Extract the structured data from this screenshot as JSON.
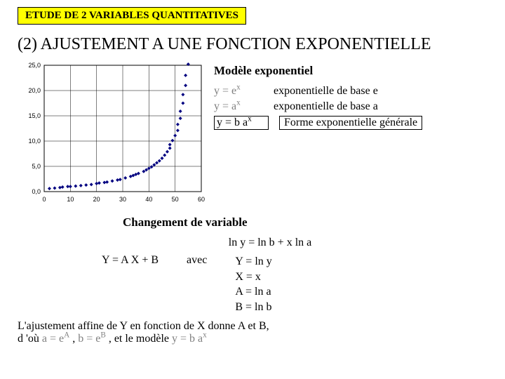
{
  "banner": "ETUDE DE 2 VARIABLES QUANTITATIVES",
  "section_number": "(2)",
  "section_title": "AJUSTEMENT A UNE FONCTION EXPONENTIELLE",
  "chart": {
    "type": "scatter",
    "background_color": "#ffffff",
    "axis_color": "#000000",
    "grid_color": "#000000",
    "marker_color": "#000080",
    "marker_size": 5,
    "xlim": [
      0,
      60
    ],
    "xtick_step": 10,
    "ylim": [
      0,
      25
    ],
    "ytick_step": 5,
    "xticks": [
      "0",
      "10",
      "20",
      "30",
      "40",
      "50",
      "60"
    ],
    "yticks": [
      "0,0",
      "5,0",
      "10,0",
      "15,0",
      "20,0",
      "25,0"
    ],
    "tick_fontsize": 9,
    "points": [
      [
        2,
        0.6
      ],
      [
        4,
        0.7
      ],
      [
        6,
        0.8
      ],
      [
        7,
        0.9
      ],
      [
        9,
        1.0
      ],
      [
        10,
        1.0
      ],
      [
        12,
        1.1
      ],
      [
        14,
        1.2
      ],
      [
        16,
        1.3
      ],
      [
        18,
        1.4
      ],
      [
        20,
        1.6
      ],
      [
        21,
        1.7
      ],
      [
        23,
        1.8
      ],
      [
        24,
        1.9
      ],
      [
        26,
        2.1
      ],
      [
        28,
        2.3
      ],
      [
        29,
        2.4
      ],
      [
        31,
        2.7
      ],
      [
        33,
        3.0
      ],
      [
        34,
        3.2
      ],
      [
        35,
        3.4
      ],
      [
        36,
        3.6
      ],
      [
        38,
        4.0
      ],
      [
        39,
        4.3
      ],
      [
        40,
        4.6
      ],
      [
        41,
        4.9
      ],
      [
        42,
        5.3
      ],
      [
        43,
        5.7
      ],
      [
        44,
        6.1
      ],
      [
        45,
        6.6
      ],
      [
        46,
        7.2
      ],
      [
        47,
        7.9
      ],
      [
        48,
        8.6
      ],
      [
        48,
        9.3
      ],
      [
        49,
        10.1
      ],
      [
        50,
        11.1
      ],
      [
        51,
        12.1
      ],
      [
        51,
        13.3
      ],
      [
        52,
        14.5
      ],
      [
        52,
        15.9
      ],
      [
        53,
        17.5
      ],
      [
        53,
        19.2
      ],
      [
        54,
        21.0
      ],
      [
        54,
        23.0
      ],
      [
        55,
        25.2
      ]
    ]
  },
  "model": {
    "heading": "Modèle exponentiel",
    "rows": [
      {
        "eq_pre": "y = e",
        "eq_sup": "x",
        "desc": "exponentielle de base e",
        "boxed": false
      },
      {
        "eq_pre": "y = a",
        "eq_sup": "x",
        "desc": "exponentielle de base a",
        "boxed": false
      },
      {
        "eq_pre": "y = b a",
        "eq_sup": "x",
        "desc": "Forme exponentielle générale",
        "boxed": true
      }
    ]
  },
  "var_change": {
    "heading": "Changement de variable",
    "equation": "ln y = ln b + x ln a",
    "linear": "Y = A X + B",
    "avec": "avec",
    "defs": [
      "Y = ln y",
      "X = x",
      "A = ln a",
      "B = ln b"
    ]
  },
  "fit": {
    "line1_a": "L'ajustement affine de Y en fonction de X donne A et B,",
    "line2_a": "d 'où ",
    "a_expr_pre": "a = e",
    "a_expr_sup": "A",
    "sep1": "  ,  ",
    "b_expr_pre": "b = e",
    "b_expr_sup": "B",
    "sep2": " , et le modèle ",
    "model_pre": "y = b a",
    "model_sup": "x"
  }
}
